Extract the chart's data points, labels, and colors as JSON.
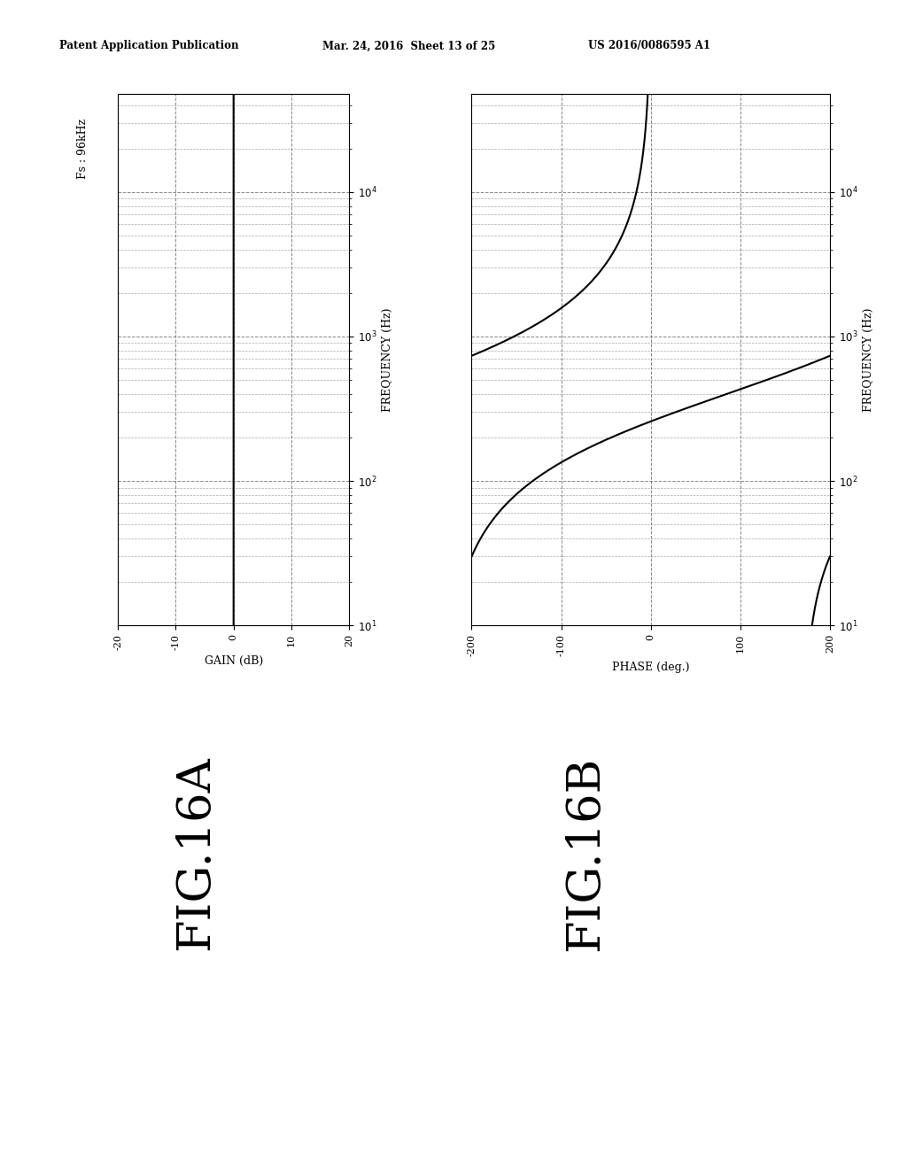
{
  "header_left": "Patent Application Publication",
  "header_center": "Mar. 24, 2016  Sheet 13 of 25",
  "header_right": "US 2016/0086595 A1",
  "fig_label_A": "FIG.16A",
  "fig_label_B": "FIG.16B",
  "fs_label": "Fs : 96kHz",
  "gain_xlabel": "GAIN (dB)",
  "freq_label": "FREQUENCY (Hz)",
  "phase_xlabel": "PHASE (deg.)",
  "gain_xlim": [
    -20,
    20
  ],
  "gain_xticks": [
    -20,
    -10,
    0,
    10,
    20
  ],
  "phase_xlim": [
    -200,
    200
  ],
  "phase_xticks": [
    -200,
    -100,
    0,
    100,
    200
  ],
  "freq_ylim": [
    10,
    48000
  ],
  "background_color": "#ffffff",
  "line_color": "#000000",
  "grid_color": "#555555",
  "grid_major_alpha": 0.7,
  "grid_minor_alpha": 0.5
}
